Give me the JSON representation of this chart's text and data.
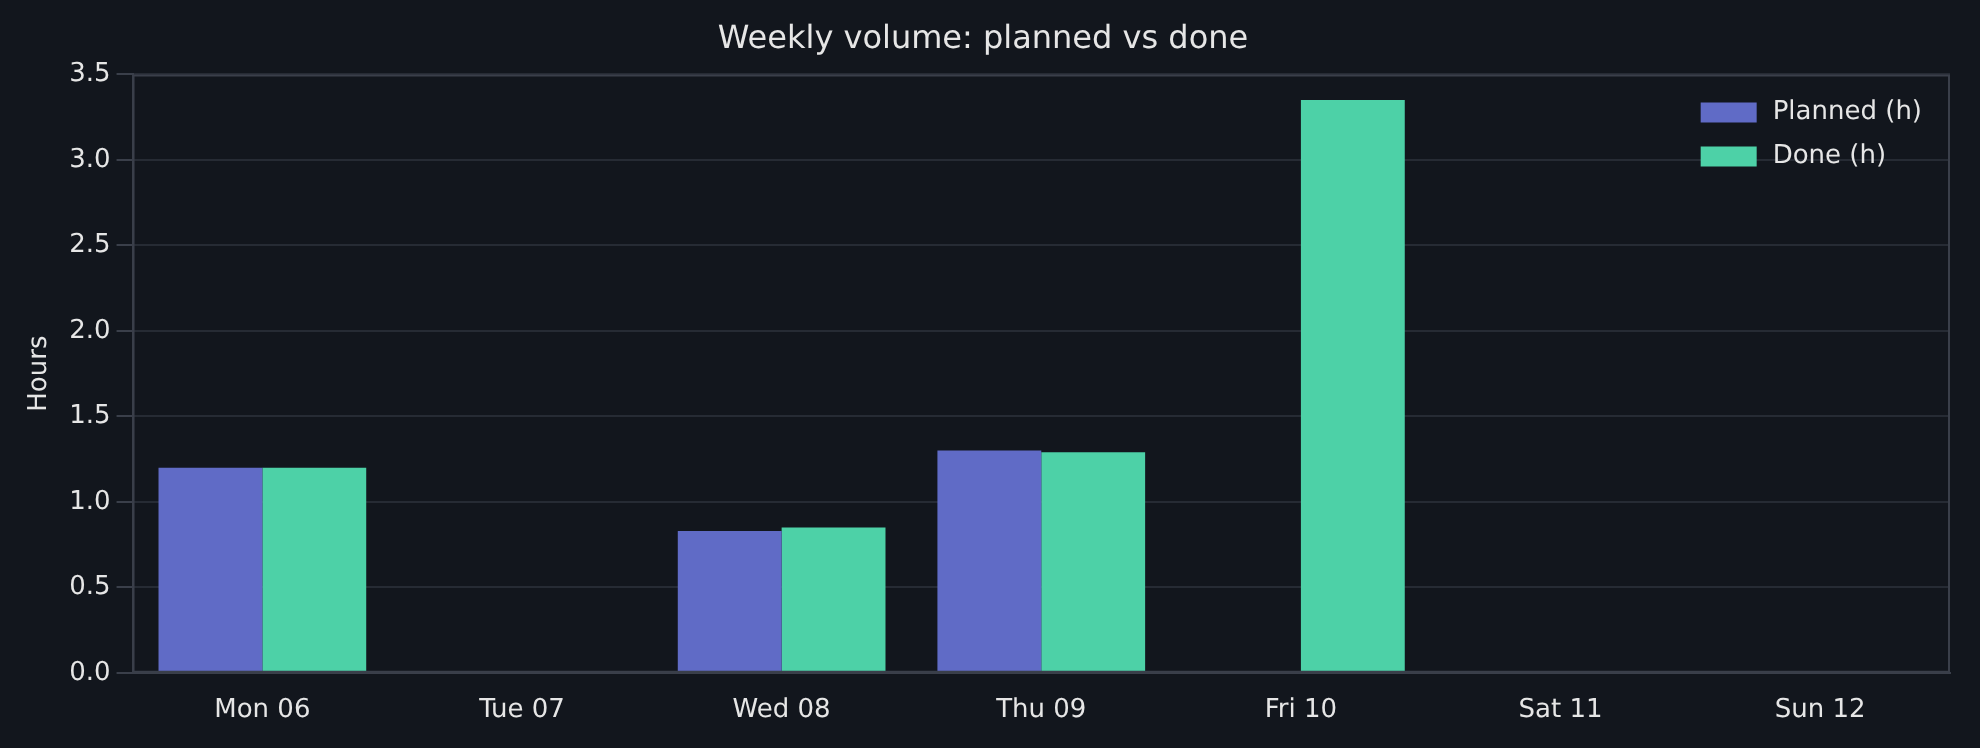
{
  "chart_data": {
    "type": "bar",
    "title": "Weekly volume: planned vs done",
    "ylabel": "Hours",
    "categories": [
      "Mon 06",
      "Tue 07",
      "Wed 08",
      "Thu 09",
      "Fri 10",
      "Sat 11",
      "Sun 12"
    ],
    "series": [
      {
        "name": "Planned (h)",
        "color": "#606bc6",
        "values": [
          1.2,
          0,
          0.83,
          1.3,
          0,
          0,
          0
        ]
      },
      {
        "name": "Done (h)",
        "color": "#4dd1a7",
        "values": [
          1.2,
          0,
          0.85,
          1.29,
          3.35,
          0,
          0
        ]
      }
    ],
    "ylim": [
      0,
      3.5
    ],
    "yticks": [
      {
        "value": 0,
        "label": "0.0"
      },
      0.5,
      {
        "value": 1,
        "label": "1.0"
      },
      1.5,
      {
        "value": 2,
        "label": "2.0"
      },
      2.5,
      {
        "value": 3,
        "label": "3.0"
      },
      3.5
    ],
    "grid": "y",
    "legend": "top right"
  }
}
